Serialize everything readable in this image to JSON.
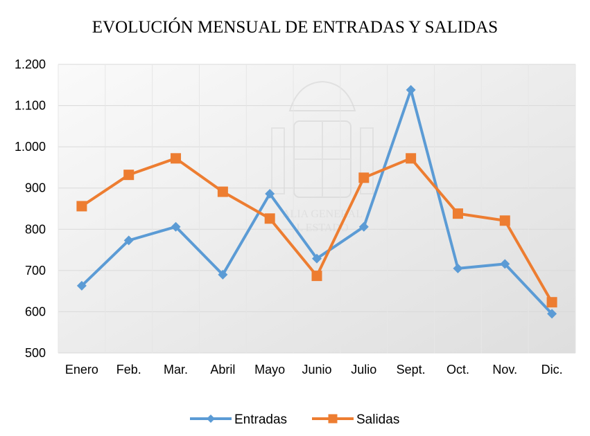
{
  "chart_data": {
    "type": "line",
    "title": "EVOLUCIÓN MENSUAL DE ENTRADAS Y SALIDAS",
    "xlabel": "",
    "ylabel": "",
    "categories": [
      "Enero",
      "Feb.",
      "Mar.",
      "Abril",
      "Mayo",
      "Junio",
      "Julio",
      "Sept.",
      "Oct.",
      "Nov.",
      "Dic."
    ],
    "ylim": [
      500,
      1200
    ],
    "yticks": [
      "500",
      "600",
      "700",
      "800",
      "900",
      "1.000",
      "1.100",
      "1.200"
    ],
    "grid": true,
    "legend_position": "bottom",
    "series": [
      {
        "name": "Entradas",
        "color": "#5b9bd5",
        "marker": "diamond",
        "values": [
          663,
          773,
          806,
          690,
          886,
          729,
          806,
          1138,
          705,
          716,
          595
        ]
      },
      {
        "name": "Salidas",
        "color": "#ed7d31",
        "marker": "square",
        "values": [
          856,
          932,
          972,
          891,
          826,
          687,
          925,
          972,
          838,
          821,
          623
        ]
      }
    ],
    "watermark": [
      "ALIA GENERAL",
      "L ESTADO"
    ]
  }
}
